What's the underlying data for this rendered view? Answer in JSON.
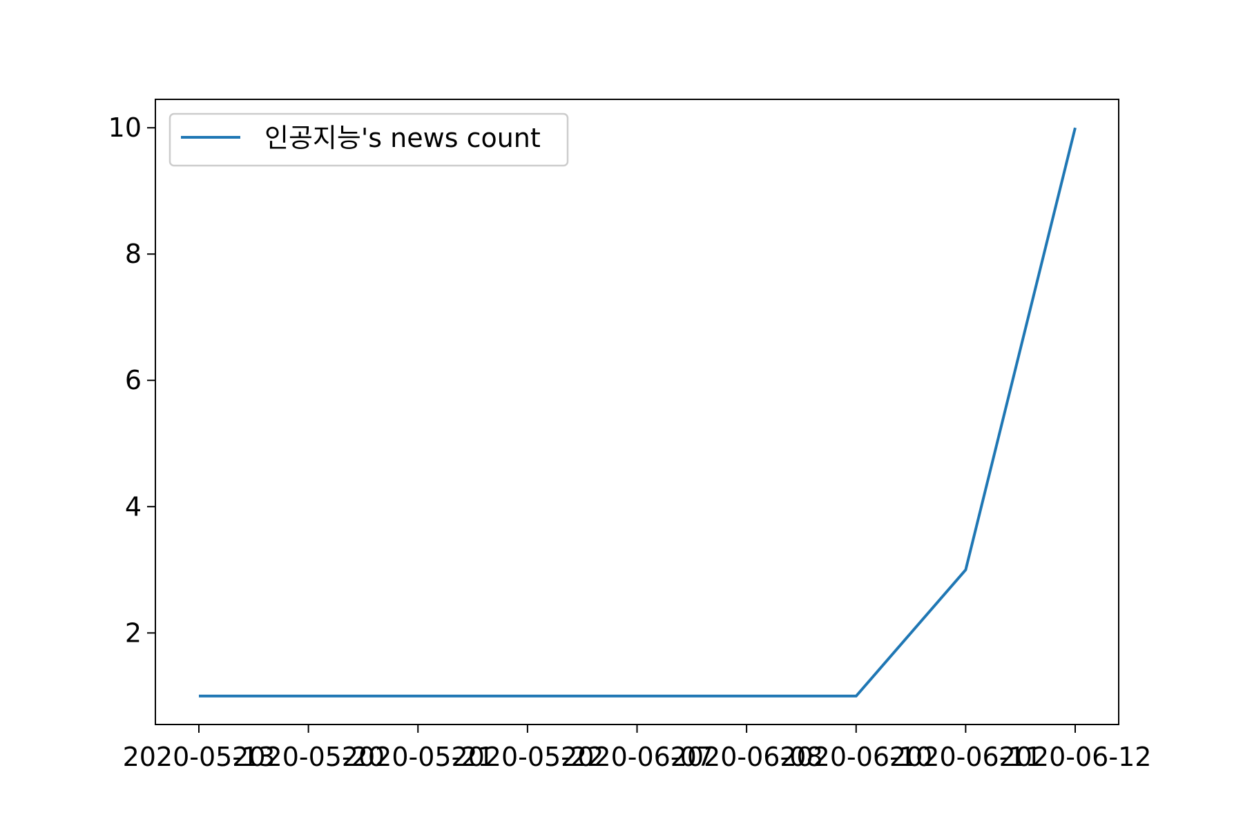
{
  "chart_data": {
    "type": "line",
    "title": "",
    "xlabel": "",
    "ylabel": "",
    "categories": [
      "2020-05-13",
      "2020-05-20",
      "2020-05-21",
      "2020-05-22",
      "2020-06-07",
      "2020-06-08",
      "2020-06-10",
      "2020-06-11",
      "2020-06-12"
    ],
    "series": [
      {
        "name": "인공지능's news count",
        "values": [
          1,
          1,
          1,
          1,
          1,
          1,
          1,
          3,
          10
        ],
        "color": "#1f77b4"
      }
    ],
    "ylim": [
      0.55,
      10.45
    ],
    "yticks": [
      2,
      4,
      6,
      8,
      10
    ],
    "grid": false,
    "legend": "top-left"
  }
}
